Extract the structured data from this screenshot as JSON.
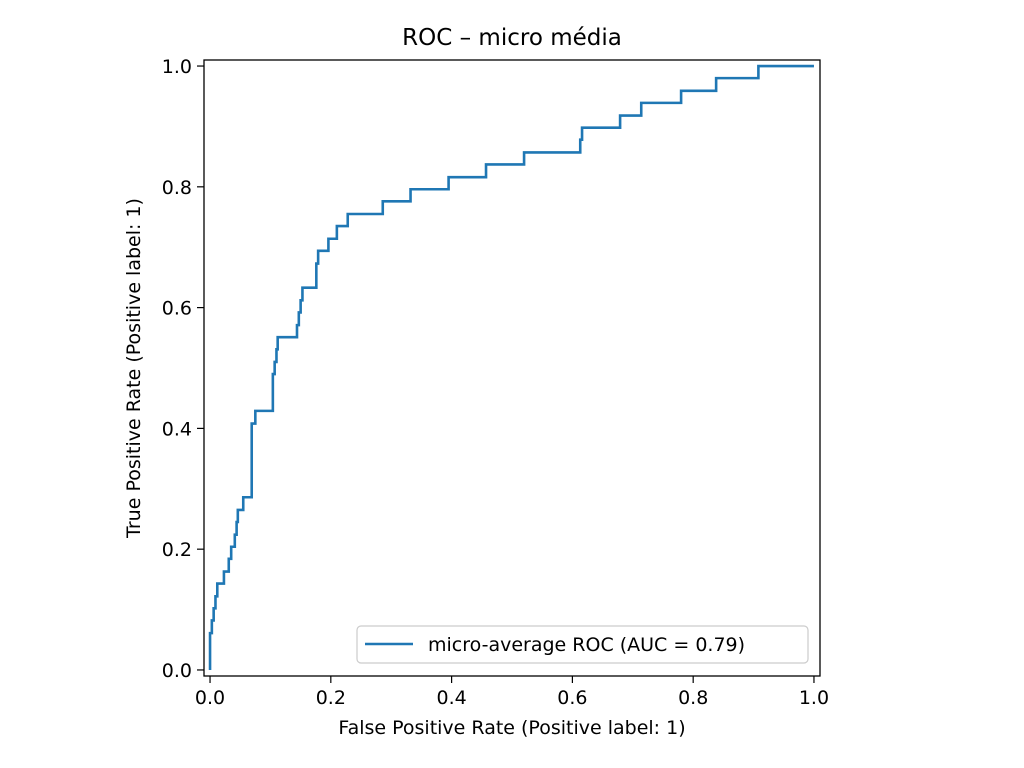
{
  "chart_data": {
    "type": "line",
    "title": "ROC – micro média",
    "xlabel": "False Positive Rate (Positive label: 1)",
    "ylabel": "True Positive Rate (Positive label: 1)",
    "xlim": [
      -0.01,
      1.01
    ],
    "ylim": [
      -0.01,
      1.01
    ],
    "xticks": [
      0.0,
      0.2,
      0.4,
      0.6,
      0.8,
      1.0
    ],
    "yticks": [
      0.0,
      0.2,
      0.4,
      0.6,
      0.8,
      1.0
    ],
    "xtick_labels": [
      "0.0",
      "0.2",
      "0.4",
      "0.6",
      "0.8",
      "1.0"
    ],
    "ytick_labels": [
      "0.0",
      "0.2",
      "0.4",
      "0.6",
      "0.8",
      "1.0"
    ],
    "grid": false,
    "legend_position": "lower right",
    "series": [
      {
        "name": "micro-average ROC (AUC = 0.79)",
        "color": "#1f77b4",
        "points": [
          [
            0.0,
            0.0
          ],
          [
            0.0,
            0.061
          ],
          [
            0.003,
            0.061
          ],
          [
            0.003,
            0.082
          ],
          [
            0.006,
            0.082
          ],
          [
            0.006,
            0.102
          ],
          [
            0.009,
            0.102
          ],
          [
            0.009,
            0.122
          ],
          [
            0.012,
            0.122
          ],
          [
            0.012,
            0.143
          ],
          [
            0.023,
            0.143
          ],
          [
            0.023,
            0.163
          ],
          [
            0.031,
            0.163
          ],
          [
            0.031,
            0.184
          ],
          [
            0.035,
            0.184
          ],
          [
            0.035,
            0.204
          ],
          [
            0.041,
            0.204
          ],
          [
            0.041,
            0.224
          ],
          [
            0.044,
            0.224
          ],
          [
            0.044,
            0.245
          ],
          [
            0.046,
            0.245
          ],
          [
            0.046,
            0.265
          ],
          [
            0.055,
            0.265
          ],
          [
            0.055,
            0.286
          ],
          [
            0.069,
            0.286
          ],
          [
            0.069,
            0.408
          ],
          [
            0.075,
            0.408
          ],
          [
            0.075,
            0.429
          ],
          [
            0.104,
            0.429
          ],
          [
            0.104,
            0.49
          ],
          [
            0.107,
            0.49
          ],
          [
            0.107,
            0.51
          ],
          [
            0.11,
            0.51
          ],
          [
            0.11,
            0.531
          ],
          [
            0.112,
            0.531
          ],
          [
            0.112,
            0.551
          ],
          [
            0.144,
            0.551
          ],
          [
            0.144,
            0.571
          ],
          [
            0.147,
            0.571
          ],
          [
            0.147,
            0.592
          ],
          [
            0.15,
            0.592
          ],
          [
            0.15,
            0.612
          ],
          [
            0.153,
            0.612
          ],
          [
            0.153,
            0.633
          ],
          [
            0.176,
            0.633
          ],
          [
            0.176,
            0.673
          ],
          [
            0.179,
            0.673
          ],
          [
            0.179,
            0.694
          ],
          [
            0.196,
            0.694
          ],
          [
            0.196,
            0.714
          ],
          [
            0.21,
            0.714
          ],
          [
            0.21,
            0.735
          ],
          [
            0.228,
            0.735
          ],
          [
            0.228,
            0.755
          ],
          [
            0.286,
            0.755
          ],
          [
            0.286,
            0.776
          ],
          [
            0.332,
            0.776
          ],
          [
            0.332,
            0.796
          ],
          [
            0.395,
            0.796
          ],
          [
            0.395,
            0.816
          ],
          [
            0.457,
            0.816
          ],
          [
            0.457,
            0.837
          ],
          [
            0.52,
            0.837
          ],
          [
            0.52,
            0.857
          ],
          [
            0.613,
            0.857
          ],
          [
            0.613,
            0.878
          ],
          [
            0.616,
            0.878
          ],
          [
            0.616,
            0.898
          ],
          [
            0.679,
            0.898
          ],
          [
            0.679,
            0.918
          ],
          [
            0.714,
            0.918
          ],
          [
            0.714,
            0.939
          ],
          [
            0.78,
            0.939
          ],
          [
            0.78,
            0.959
          ],
          [
            0.838,
            0.959
          ],
          [
            0.838,
            0.98
          ],
          [
            0.908,
            0.98
          ],
          [
            0.908,
            1.0
          ],
          [
            1.0,
            1.0
          ]
        ]
      }
    ]
  }
}
